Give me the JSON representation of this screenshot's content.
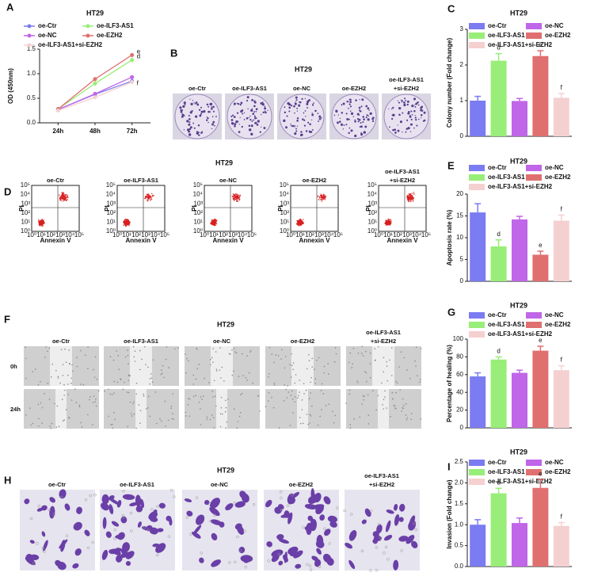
{
  "chart_data": [
    {
      "type": "line",
      "panel_label": "A",
      "title": "HT29",
      "ylabel": "OD (450nm)",
      "categories": [
        "24h",
        "48h",
        "72h"
      ],
      "ylim": [
        0,
        1.5
      ],
      "yticks": [
        {
          "value": 0,
          "label": "0.0"
        },
        0.5,
        {
          "value": 1,
          "label": "1.0"
        },
        1.5
      ],
      "series": [
        {
          "name": "oe-Ctr",
          "color": "#7b7bf2",
          "values": [
            0.27,
            0.58,
            0.85
          ],
          "errors": [
            0.03,
            0.03,
            0.04
          ],
          "significance": null
        },
        {
          "name": "oe-NC",
          "color": "#c066e8",
          "values": [
            0.27,
            0.59,
            0.93
          ],
          "errors": [
            0.03,
            0.03,
            0.04
          ],
          "significance": "f"
        },
        {
          "name": "oe-ILF3-AS1",
          "color": "#98ee78",
          "values": [
            0.28,
            0.8,
            1.28
          ],
          "errors": [
            0.03,
            0.05,
            0.05
          ],
          "significance": "d"
        },
        {
          "name": "oe-EZH2",
          "color": "#e07070",
          "values": [
            0.28,
            0.89,
            1.38
          ],
          "errors": [
            0.03,
            0.03,
            0.04
          ],
          "significance": "e"
        },
        {
          "name": "oe-ILF3-AS1+si-EZH2",
          "color": "#f5d0d0",
          "values": [
            0.25,
            0.52,
            0.83
          ],
          "errors": [
            0.03,
            0.03,
            0.04
          ],
          "significance": null
        }
      ]
    },
    {
      "type": "bar",
      "panel_label": "C",
      "title": "HT29",
      "ylabel": "Colony number (Fold change)",
      "categories": [
        "oe-Ctr",
        "oe-ILF3-AS1",
        "oe-NC",
        "oe-EZH2",
        "oe-ILF3-AS1+si-EZH2"
      ],
      "colors": [
        "#7b7bf2",
        "#98ee78",
        "#c066e8",
        "#e07070",
        "#f5d0d0"
      ],
      "values": [
        1.0,
        2.12,
        0.99,
        2.25,
        1.08
      ],
      "errors": [
        0.12,
        0.2,
        0.07,
        0.15,
        0.12
      ],
      "significance": [
        null,
        "d",
        null,
        "e",
        "f"
      ],
      "ylim": [
        0,
        3
      ],
      "yticks": [
        0,
        1,
        2,
        3
      ]
    },
    {
      "type": "bar",
      "panel_label": "E",
      "title": "HT29",
      "ylabel": "Apoptosis rate (%)",
      "categories": [
        "oe-Ctr",
        "oe-ILF3-AS1",
        "oe-NC",
        "oe-EZH2",
        "oe-ILF3-AS1+si-EZH2"
      ],
      "colors": [
        "#7b7bf2",
        "#98ee78",
        "#c066e8",
        "#e07070",
        "#f5d0d0"
      ],
      "values": [
        15.8,
        8.0,
        14.2,
        6.1,
        13.9
      ],
      "errors": [
        2.0,
        1.5,
        0.7,
        0.8,
        1.3
      ],
      "significance": [
        null,
        "d",
        null,
        "e",
        "f"
      ],
      "ylim": [
        0,
        20
      ],
      "yticks": [
        0,
        5,
        10,
        15,
        20
      ]
    },
    {
      "type": "bar",
      "panel_label": "G",
      "title": "HT29",
      "ylabel": "Percentage of healing (%)",
      "categories": [
        "oe-Ctr",
        "oe-ILF3-AS1",
        "oe-NC",
        "oe-EZH2",
        "oe-ILF3-AS1+si-EZH2"
      ],
      "colors": [
        "#7b7bf2",
        "#98ee78",
        "#c066e8",
        "#e07070",
        "#f5d0d0"
      ],
      "values": [
        58,
        77,
        62,
        87,
        65
      ],
      "errors": [
        4,
        3,
        3,
        5,
        5
      ],
      "significance": [
        null,
        "d",
        null,
        "e",
        "f"
      ],
      "ylim": [
        0,
        100
      ],
      "yticks": [
        0,
        20,
        40,
        60,
        80,
        100
      ]
    },
    {
      "type": "bar",
      "panel_label": "I",
      "title": "HT29",
      "ylabel": "Invasion (Fold change)",
      "categories": [
        "oe-Ctr",
        "oe-ILF3-AS1",
        "oe-NC",
        "oe-EZH2",
        "oe-ILF3-AS1+si-EZH2"
      ],
      "colors": [
        "#7b7bf2",
        "#98ee78",
        "#c066e8",
        "#e07070",
        "#f5d0d0"
      ],
      "values": [
        1.0,
        1.75,
        1.04,
        1.88,
        0.97
      ],
      "errors": [
        0.12,
        0.12,
        0.12,
        0.2,
        0.08
      ],
      "significance": [
        null,
        "d",
        null,
        "e",
        "f"
      ],
      "ylim": [
        0,
        2.5
      ],
      "yticks": [
        {
          "value": 0,
          "label": "0.0"
        },
        0.5,
        {
          "value": 1,
          "label": "1.0"
        },
        1.5,
        {
          "value": 2,
          "label": "2.0"
        },
        2.5
      ]
    }
  ],
  "panels": {
    "B": {
      "label": "B",
      "title": "HT29",
      "columns": [
        [
          "oe-Ctr"
        ],
        [
          "oe-ILF3-AS1"
        ],
        [
          "oe-NC"
        ],
        [
          "oe-EZH2"
        ],
        [
          "oe-ILF3-AS1",
          "+si-EZH2"
        ]
      ]
    },
    "D": {
      "label": "D",
      "title": "HT29",
      "columns": [
        [
          "oe-Ctr"
        ],
        [
          "oe-ILF3-AS1"
        ],
        [
          "oe-NC"
        ],
        [
          "oe-EZH2"
        ],
        [
          "oe-ILF3-AS1",
          "+si-EZH2"
        ]
      ],
      "x_axis_label": "Annexin V",
      "y_axis_label": "PI",
      "axis_ticks": [
        "10⁰",
        "10¹",
        "10²",
        "10³",
        "10⁴",
        "10⁵"
      ]
    },
    "F": {
      "label": "F",
      "title": "HT29",
      "columns": [
        [
          "oe-Ctr"
        ],
        [
          "oe-ILF3-AS1"
        ],
        [
          "oe-NC"
        ],
        [
          "oe-EZH2"
        ],
        [
          "oe-ILF3-AS1",
          "+si-EZH2"
        ]
      ],
      "rows": [
        "0h",
        "24h"
      ]
    },
    "H": {
      "label": "H",
      "title": "HT29",
      "columns": [
        [
          "oe-Ctr"
        ],
        [
          "oe-ILF3-AS1"
        ],
        [
          "oe-NC"
        ],
        [
          "oe-EZH2"
        ],
        [
          "oe-ILF3-AS1",
          "+si-EZH2"
        ]
      ]
    }
  }
}
